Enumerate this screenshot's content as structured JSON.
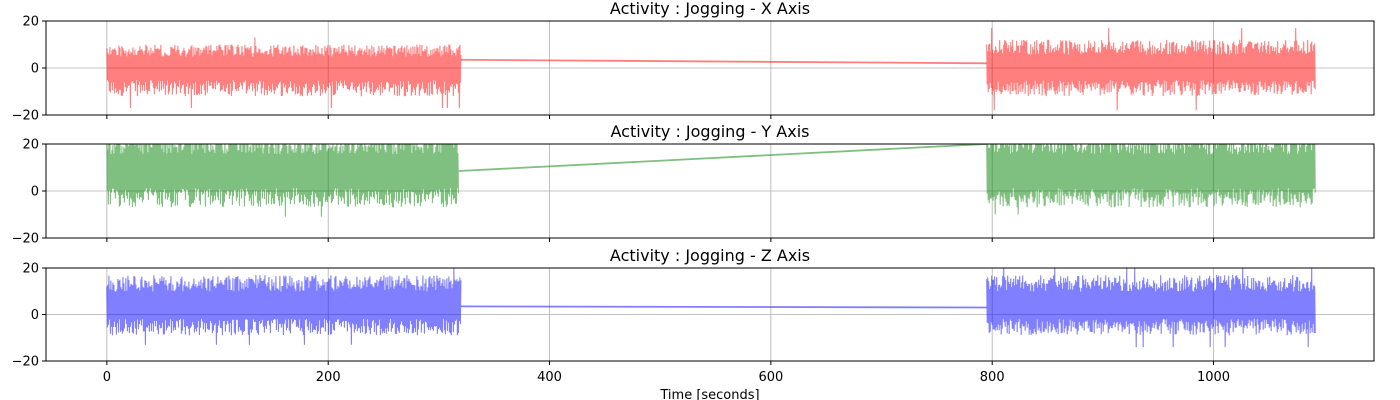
{
  "chart_data": [
    {
      "type": "line",
      "title": "Activity : Jogging - X Axis",
      "xlabel": "",
      "ylabel": "",
      "ylim": [
        -20,
        20
      ],
      "xlim": [
        -55,
        1145
      ],
      "yticks": [
        -20,
        0,
        20
      ],
      "xticks": [
        0,
        200,
        400,
        600,
        800,
        1000,
        1200
      ],
      "xtick_labels_visible": false,
      "grid": true,
      "series": [
        {
          "color": "#ff0000",
          "alpha": 0.5,
          "segments": [
            {
              "x_start": 0,
              "x_end": 320,
              "center": 0.5,
              "low": -12,
              "high": 10,
              "peak_low": -17,
              "peak_high": 13
            },
            {
              "x_start": 795,
              "x_end": 1092,
              "center": 0.5,
              "low": -12,
              "high": 12,
              "peak_low": -18,
              "peak_high": 17
            }
          ],
          "bridge": [
            [
              320,
              3.5
            ],
            [
              795,
              2.0
            ]
          ]
        }
      ]
    },
    {
      "type": "line",
      "title": "Activity : Jogging - Y Axis",
      "xlabel": "",
      "ylabel": "",
      "ylim": [
        -20,
        20
      ],
      "xlim": [
        -55,
        1145
      ],
      "yticks": [
        -20,
        0,
        20
      ],
      "xticks": [
        0,
        200,
        400,
        600,
        800,
        1000,
        1200
      ],
      "xtick_labels_visible": false,
      "grid": true,
      "series": [
        {
          "color": "#008000",
          "alpha": 0.5,
          "segments": [
            {
              "x_start": 0,
              "x_end": 318,
              "center": 8,
              "low": -7,
              "high": 25,
              "peak_low": -11,
              "peak_high": 25
            },
            {
              "x_start": 795,
              "x_end": 1092,
              "center": 8,
              "low": -7,
              "high": 25,
              "peak_low": -10,
              "peak_high": 25
            }
          ],
          "bridge": [
            [
              318,
              8.5
            ],
            [
              795,
              20
            ]
          ]
        }
      ]
    },
    {
      "type": "line",
      "title": "Activity : Jogging - Z Axis",
      "xlabel": "Time [seconds]",
      "ylabel": "",
      "ylim": [
        -20,
        20
      ],
      "xlim": [
        -55,
        1145
      ],
      "yticks": [
        -20,
        0,
        20
      ],
      "xticks": [
        0,
        200,
        400,
        600,
        800,
        1000,
        1200
      ],
      "xtick_labels_visible": true,
      "grid": true,
      "series": [
        {
          "color": "#0000ff",
          "alpha": 0.5,
          "segments": [
            {
              "x_start": 0,
              "x_end": 320,
              "center": 4,
              "low": -9,
              "high": 17,
              "peak_low": -13,
              "peak_high": 20
            },
            {
              "x_start": 795,
              "x_end": 1092,
              "center": 4,
              "low": -9,
              "high": 17,
              "peak_low": -14,
              "peak_high": 20
            }
          ],
          "bridge": [
            [
              320,
              3.5
            ],
            [
              795,
              3.0
            ]
          ]
        }
      ]
    }
  ]
}
